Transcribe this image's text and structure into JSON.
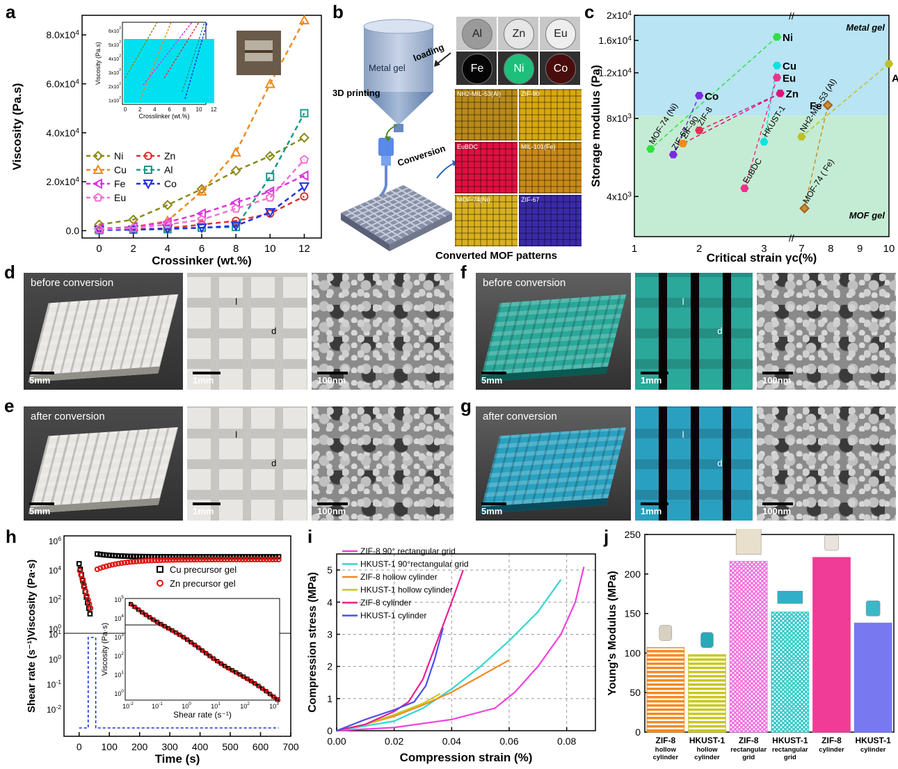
{
  "panel_labels": {
    "a": "a",
    "b": "b",
    "c": "c",
    "d": "d",
    "e": "e",
    "f": "f",
    "g": "g",
    "h": "h",
    "i": "i",
    "j": "j"
  },
  "panel_b": {
    "metal_gel": "Metal gel",
    "loading": "loading",
    "printing": "3D printing",
    "conversion": "Conversion",
    "converted": "Converted MOF patterns",
    "metals": [
      {
        "symbol": "Al",
        "color": "#9a9a9a",
        "text": "#222"
      },
      {
        "symbol": "Zn",
        "color": "#e6e6e6",
        "text": "#222"
      },
      {
        "symbol": "Eu",
        "color": "#eeeeee",
        "text": "#222"
      },
      {
        "symbol": "Fe",
        "color": "#050505",
        "text": "#ffffff"
      },
      {
        "symbol": "Ni",
        "color": "#1dbf7a",
        "text": "#ffffff"
      },
      {
        "symbol": "Co",
        "color": "#4a0d0d",
        "text": "#ffffff"
      }
    ],
    "mof_tiles": [
      {
        "label": "NH2-MIL-53(Al)",
        "color": "#b88a1a"
      },
      {
        "label": "ZIF-90",
        "color": "#d8a812"
      },
      {
        "label": "EuBDC",
        "color": "#e01040"
      },
      {
        "label": "MIL-101(Fe)",
        "color": "#c88a1a"
      },
      {
        "label": "MOF-74(Ni)",
        "color": "#d8b020"
      },
      {
        "label": "ZIF-67",
        "color": "#3a2aa8"
      }
    ]
  },
  "photos": {
    "d": {
      "caption": "before conversion",
      "sb1": "5mm",
      "sb2": "1mm",
      "sb3": "100nm",
      "l": "l",
      "d": "d"
    },
    "e": {
      "caption": "after conversion",
      "sb1": "5mm",
      "sb2": "1mm",
      "sb3": "100nm",
      "l": "l",
      "d": "d"
    },
    "f": {
      "caption": "before conversion",
      "sb1": "5mm",
      "sb2": "1mm",
      "sb3": "100nm",
      "l": "l",
      "d": "d"
    },
    "g": {
      "caption": "after conversion",
      "sb1": "5mm",
      "sb2": "1mm",
      "sb3": "100nm",
      "l": "l",
      "d": "d"
    }
  },
  "chart_data": [
    {
      "id": "a",
      "type": "line",
      "xlabel": "Crossinker (wt.%)",
      "ylabel": "Viscosity (Pa.s)",
      "xlim": [
        -1,
        13
      ],
      "ylim": [
        -3000,
        88000
      ],
      "xticks": [
        0,
        2,
        4,
        6,
        8,
        10,
        12
      ],
      "yticks": [
        {
          "v": 0,
          "label": "0.0"
        },
        {
          "v": 20000,
          "label": "2.0x10^4"
        },
        {
          "v": 40000,
          "label": "4.0x10^4"
        },
        {
          "v": 60000,
          "label": "6.0x10^4"
        },
        {
          "v": 80000,
          "label": "8.0x10^4"
        }
      ],
      "x": [
        0,
        2,
        4,
        6,
        8,
        10,
        12
      ],
      "series": [
        {
          "name": "Ni",
          "color": "#8a8a1a",
          "marker": "diamond",
          "values": [
            2500,
            4500,
            10500,
            17000,
            24500,
            30500,
            38000
          ]
        },
        {
          "name": "Zn",
          "color": "#e03030",
          "marker": "circle",
          "values": [
            300,
            500,
            1000,
            2500,
            4000,
            7000,
            14000
          ]
        },
        {
          "name": "Cu",
          "color": "#f08a1a",
          "marker": "triangle-up",
          "values": [
            800,
            1500,
            4000,
            16000,
            32000,
            60000,
            86000
          ]
        },
        {
          "name": "Al",
          "color": "#1a9a8a",
          "marker": "square",
          "values": [
            200,
            400,
            600,
            1200,
            1500,
            22000,
            48000
          ]
        },
        {
          "name": "Fe",
          "color": "#e030e0",
          "marker": "triangle-left",
          "values": [
            800,
            1500,
            3500,
            7000,
            11500,
            16000,
            22500
          ]
        },
        {
          "name": "Co",
          "color": "#2030e0",
          "marker": "triangle-down",
          "values": [
            300,
            400,
            800,
            1200,
            2000,
            7500,
            18000
          ]
        },
        {
          "name": "Eu",
          "color": "#f070d0",
          "marker": "pentagon",
          "values": [
            500,
            1000,
            2500,
            4500,
            9000,
            13500,
            29000
          ]
        }
      ],
      "inset": {
        "xlabel": "Crosslinker (wt.%)",
        "ylabel": "Viscosity (Pa.s)",
        "xticks": [
          0,
          2,
          4,
          6,
          8,
          10,
          12
        ],
        "ytick_labels": [
          "1x10^2",
          "2x10^2",
          "3x10^2",
          "4x10^2",
          "5x10^2",
          "6x10^2"
        ]
      }
    },
    {
      "id": "c",
      "type": "scatter",
      "xlabel": "Critical strain γc(%)",
      "ylabel": "Storage modulus (Pa)",
      "region_labels": {
        "top": "Metal gel",
        "bottom": "MOF gel"
      },
      "xtick_labels_left": [
        "1",
        "2",
        "3"
      ],
      "xtick_labels_right": [
        "7",
        "8",
        "9",
        "10"
      ],
      "ytick_labels": [
        "4x10^3",
        "8x10^3",
        "1.2x10^4",
        "1.6x10^4",
        "2x10^4"
      ],
      "points": [
        {
          "name": "Ni",
          "x": 3.2,
          "y": 16500,
          "group": "metal",
          "color": "#2ee040"
        },
        {
          "name": "Co",
          "x": 2.0,
          "y": 9800,
          "group": "metal",
          "color": "#7a2ae0"
        },
        {
          "name": "Cu",
          "x": 3.2,
          "y": 12800,
          "group": "metal",
          "color": "#10e0e0"
        },
        {
          "name": "Eu",
          "x": 3.2,
          "y": 11500,
          "group": "metal",
          "color": "#f0308a"
        },
        {
          "name": "Zn",
          "x": 3.25,
          "y": 10000,
          "group": "metal",
          "color": "#e0107a"
        },
        {
          "name": "Fe",
          "x": 7.9,
          "y": 9000,
          "group": "metal",
          "color": "#d08a30"
        },
        {
          "name": "Al",
          "x": 10.0,
          "y": 13000,
          "group": "metal",
          "color": "#c0c020"
        },
        {
          "name": "MOF-74 (Ni)",
          "x": 1.25,
          "y": 6100,
          "group": "mof",
          "color": "#2ee040"
        },
        {
          "name": "ZIF-67",
          "x": 1.6,
          "y": 5800,
          "group": "mof",
          "color": "#7a2ae0"
        },
        {
          "name": "ZIF-90",
          "x": 1.75,
          "y": 6400,
          "group": "mof",
          "color": "#f08a1a"
        },
        {
          "name": "ZIF-8",
          "x": 2.0,
          "y": 7200,
          "group": "mof",
          "color": "#e03050"
        },
        {
          "name": "HKUST-1",
          "x": 3.0,
          "y": 6500,
          "group": "mof",
          "color": "#10e0e0"
        },
        {
          "name": "NH2-MIL-53 (Al)",
          "x": 7.0,
          "y": 6800,
          "group": "mof",
          "color": "#c0c020"
        },
        {
          "name": "EuBDC",
          "x": 2.7,
          "y": 4300,
          "group": "mof",
          "color": "#f0308a"
        },
        {
          "name": "MOF-74 ( Fe)",
          "x": 7.1,
          "y": 3600,
          "group": "mof",
          "color": "#d08a30"
        }
      ]
    },
    {
      "id": "h",
      "type": "scatter",
      "xlabel": "Time (s)",
      "ylabel": "Shear rate (s^-1)Viscosity (Pa·s)",
      "xticks": [
        0,
        100,
        200,
        300,
        400,
        500,
        600,
        700
      ],
      "ytick_labels_top": [
        "10^0",
        "10^2",
        "10^4",
        "10^6"
      ],
      "ytick_labels_bottom": [
        "10^-2",
        "10^-1",
        "10^0",
        "10^1"
      ],
      "series": [
        {
          "name": "Cu precursor gel",
          "color": "#000000",
          "marker": "square"
        },
        {
          "name": "Zn precursor gel",
          "color": "#e01010",
          "marker": "circle"
        }
      ],
      "inset": {
        "xlabel": "Shear rate (s^-1)",
        "ylabel": "Viscosity (Pa·s)",
        "xtick_labels": [
          "10^-2",
          "10^-1",
          "10^0",
          "10^1",
          "10^2",
          "10^3"
        ],
        "ytick_labels": [
          "10^0",
          "10^1",
          "10^2",
          "10^3",
          "10^4",
          "10^5"
        ]
      }
    },
    {
      "id": "i",
      "type": "line",
      "xlabel": "Compression strain (%)",
      "ylabel": "Compression stress (MPa)",
      "xlim": [
        0,
        0.09
      ],
      "ylim": [
        0,
        5.5
      ],
      "xticks": [
        0.0,
        0.02,
        0.04,
        0.06,
        0.08
      ],
      "xtick_labels": [
        "0.00",
        "0.02",
        "0.04",
        "0.06",
        "0.08"
      ],
      "yticks": [
        0,
        1,
        2,
        3,
        4,
        5
      ],
      "series": [
        {
          "name": "ZIF-8 90° rectangular grid",
          "color": "#f040e0",
          "points": [
            [
              0,
              0
            ],
            [
              0.02,
              0.1
            ],
            [
              0.04,
              0.35
            ],
            [
              0.055,
              0.7
            ],
            [
              0.062,
              1.2
            ],
            [
              0.07,
              2.0
            ],
            [
              0.078,
              3.0
            ],
            [
              0.083,
              4.0
            ],
            [
              0.086,
              5.1
            ]
          ]
        },
        {
          "name": "HKUST-1 90°rectangular grid",
          "color": "#30d8d0",
          "points": [
            [
              0,
              0
            ],
            [
              0.02,
              0.3
            ],
            [
              0.03,
              0.7
            ],
            [
              0.04,
              1.3
            ],
            [
              0.05,
              2.0
            ],
            [
              0.06,
              2.8
            ],
            [
              0.07,
              3.7
            ],
            [
              0.078,
              4.7
            ]
          ]
        },
        {
          "name": "ZIF-8 hollow cylinder",
          "color": "#f08a20",
          "points": [
            [
              0,
              0
            ],
            [
              0.01,
              0.2
            ],
            [
              0.02,
              0.45
            ],
            [
              0.03,
              0.8
            ],
            [
              0.04,
              1.2
            ],
            [
              0.05,
              1.7
            ],
            [
              0.06,
              2.2
            ]
          ]
        },
        {
          "name": "HKUST-1 hollow cylinder",
          "color": "#c8c820",
          "points": [
            [
              0,
              0
            ],
            [
              0.01,
              0.2
            ],
            [
              0.02,
              0.5
            ],
            [
              0.03,
              0.85
            ],
            [
              0.036,
              1.15
            ]
          ]
        },
        {
          "name": "ZIF-8 cylinder",
          "color": "#e82090",
          "points": [
            [
              0,
              0
            ],
            [
              0.01,
              0.2
            ],
            [
              0.02,
              0.6
            ],
            [
              0.025,
              0.9
            ],
            [
              0.03,
              1.6
            ],
            [
              0.035,
              2.8
            ],
            [
              0.04,
              4.0
            ],
            [
              0.044,
              5.0
            ]
          ]
        },
        {
          "name": "HKUST-1 cylinder",
          "color": "#4a50e8",
          "points": [
            [
              0,
              0
            ],
            [
              0.01,
              0.35
            ],
            [
              0.02,
              0.65
            ],
            [
              0.027,
              0.9
            ],
            [
              0.031,
              1.4
            ],
            [
              0.034,
              2.2
            ],
            [
              0.037,
              3.2
            ]
          ]
        }
      ]
    },
    {
      "id": "j",
      "type": "bar",
      "ylabel": "Young's Modulus (MPa)",
      "ylim": [
        0,
        250
      ],
      "yticks": [
        0,
        50,
        100,
        150,
        200,
        250
      ],
      "categories": [
        {
          "main": "ZIF-8",
          "sub": [
            "hollow",
            "cylinder"
          ]
        },
        {
          "main": "HKUST-1",
          "sub": [
            "hollow",
            "cylinder"
          ]
        },
        {
          "main": "ZIF-8",
          "sub": [
            "rectangular",
            "grid"
          ]
        },
        {
          "main": "HKUST-1",
          "sub": [
            "rectangular",
            "grid"
          ]
        },
        {
          "main": "ZIF-8",
          "sub": [
            "cylinder"
          ]
        },
        {
          "main": "HKUST-1",
          "sub": [
            "cylinder"
          ]
        }
      ],
      "values": [
        107,
        98,
        216,
        152,
        221,
        138
      ],
      "colors": [
        "#f58a20",
        "#c8c820",
        "#f070e0",
        "#30c8c8",
        "#f03c96",
        "#7878f0"
      ],
      "patterns": [
        "hlines",
        "hlines",
        "cross",
        "cross",
        "solid",
        "solid"
      ]
    }
  ]
}
